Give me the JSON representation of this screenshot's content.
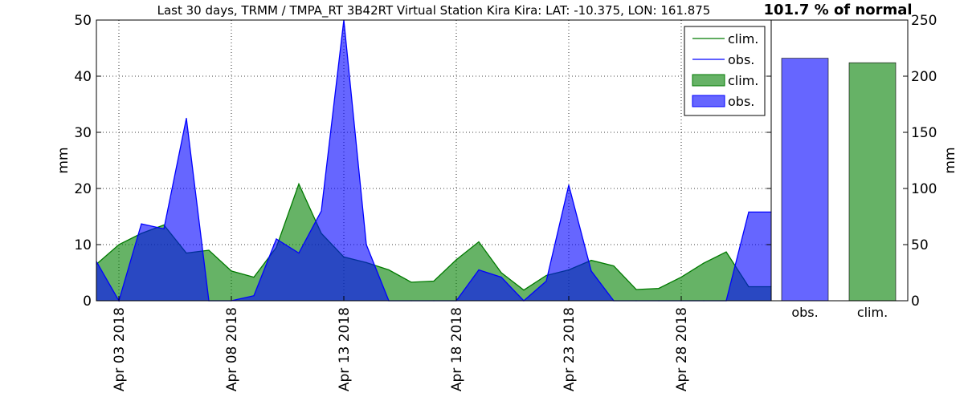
{
  "title": "Last 30 days, TRMM / TMPA_RT 3B42RT Virtual Station Kira Kira: LAT: -10.375, LON: 161.875",
  "percent_label": "101.7 % of normal",
  "colors": {
    "clim_line": "#007a00",
    "clim_fill": "#008000",
    "obs_line": "#0000ff",
    "obs_fill": "#0000ff",
    "obs_bar": "#6666ff",
    "clim_bar": "#66b266"
  },
  "chart_data": [
    {
      "type": "area",
      "title": "Last 30 days, TRMM / TMPA_RT 3B42RT Virtual Station Kira Kira: LAT: -10.375, LON: 161.875",
      "xlabel": "",
      "ylabel": "mm",
      "ylim": [
        0,
        50
      ],
      "yticks": [
        0,
        10,
        20,
        30,
        40,
        50
      ],
      "grid": true,
      "legend_position": "top-right",
      "legend": [
        "clim.",
        "obs.",
        "clim.",
        "obs."
      ],
      "x": [
        "Apr 02 2018",
        "Apr 03 2018",
        "Apr 04 2018",
        "Apr 05 2018",
        "Apr 06 2018",
        "Apr 07 2018",
        "Apr 08 2018",
        "Apr 09 2018",
        "Apr 10 2018",
        "Apr 11 2018",
        "Apr 12 2018",
        "Apr 13 2018",
        "Apr 14 2018",
        "Apr 15 2018",
        "Apr 16 2018",
        "Apr 17 2018",
        "Apr 18 2018",
        "Apr 19 2018",
        "Apr 20 2018",
        "Apr 21 2018",
        "Apr 22 2018",
        "Apr 23 2018",
        "Apr 24 2018",
        "Apr 25 2018",
        "Apr 26 2018",
        "Apr 27 2018",
        "Apr 28 2018",
        "Apr 29 2018",
        "Apr 30 2018",
        "May 01 2018",
        "May 02 2018"
      ],
      "xtick_labels": [
        "Apr 03 2018",
        "Apr 08 2018",
        "Apr 13 2018",
        "Apr 18 2018",
        "Apr 23 2018",
        "Apr 28 2018"
      ],
      "series": [
        {
          "name": "clim.",
          "values": [
            6.5,
            10.0,
            12.0,
            13.5,
            8.5,
            9.0,
            5.3,
            4.2,
            9.5,
            20.8,
            12.0,
            7.8,
            6.8,
            5.5,
            3.3,
            3.5,
            7.3,
            10.5,
            5.0,
            1.9,
            4.5,
            5.5,
            7.2,
            6.2,
            2.0,
            2.2,
            4.2,
            6.7,
            8.7,
            2.5,
            2.5
          ]
        },
        {
          "name": "obs.",
          "values": [
            7.0,
            0.0,
            13.7,
            12.8,
            32.5,
            0.0,
            0.0,
            0.9,
            11.0,
            8.5,
            16.0,
            50.0,
            10.0,
            0.0,
            0.0,
            0.0,
            0.0,
            5.5,
            4.2,
            0.0,
            3.5,
            20.6,
            5.3,
            0.0,
            0.0,
            0.0,
            0.0,
            0.0,
            0.0,
            15.8,
            15.8
          ]
        }
      ]
    },
    {
      "type": "bar",
      "title": "101.7 % of normal",
      "categories": [
        "obs.",
        "clim."
      ],
      "values": [
        216,
        212
      ],
      "ylabel": "mm",
      "ylim": [
        0,
        250
      ],
      "yticks": [
        0,
        50,
        100,
        150,
        200,
        250
      ]
    }
  ]
}
